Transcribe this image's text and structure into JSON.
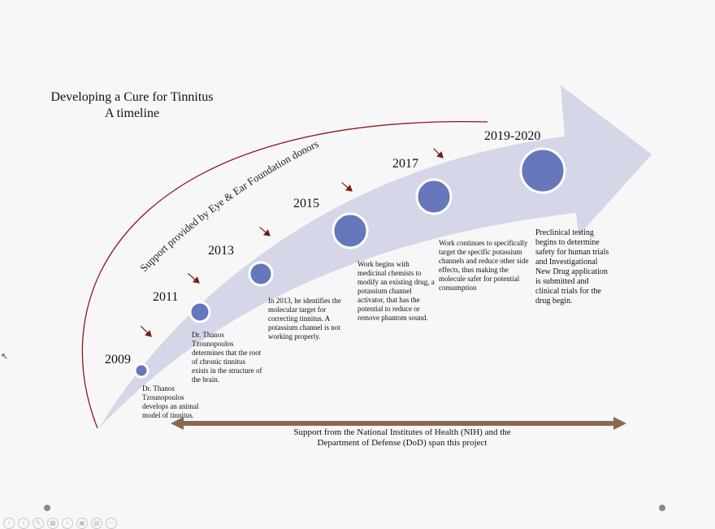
{
  "title": {
    "line1": "Developing a Cure for Tinnitus",
    "line2": "A timeline"
  },
  "arc_label": "Support provided by Eye & Ear Foundation donors",
  "milestones": [
    {
      "year": "2009",
      "text": "Dr. Thanos Tzounopoulos develops an animal model of tinnitus."
    },
    {
      "year": "2011",
      "text": "Dr. Thanos Tzounopoulos determines that the root of chronic tinnitus exists in the structure of the brain."
    },
    {
      "year": "2013",
      "text": "In 2013, he identifies the molecular target for correcting tinnitus. A potassium channel is not working properly."
    },
    {
      "year": "2015",
      "text": "Work begins with medicinal chemists to modify an existing drug, a potassium channel activator, that has the potential to reduce or remove phantom sound."
    },
    {
      "year": "2017",
      "text": "Work continues to specifically target the specific potassium channels and reduce other side effects, thus making the molecule safer for potential consumption"
    },
    {
      "year": "2019-2020",
      "text": "Preclinical testing begins to determine safety for human trials and Investigational New Drug application is submitted and clinical trials for the drug begin."
    }
  ],
  "bottom_support": "Support from the National Institutes of Health (NIH) and the Department of Defense (DoD) span this project",
  "colors": {
    "arrow": "#d5d6e8",
    "circle": "#6677bb",
    "arc": "#8b1a1a",
    "brown_arrow": "#8a6a4f",
    "marker": "#7a1a1a"
  },
  "toolbar_icons": [
    "prev-icon",
    "next-icon",
    "pen-icon",
    "slides-icon",
    "zoom-icon",
    "screen-icon",
    "options-icon",
    "more-icon"
  ]
}
